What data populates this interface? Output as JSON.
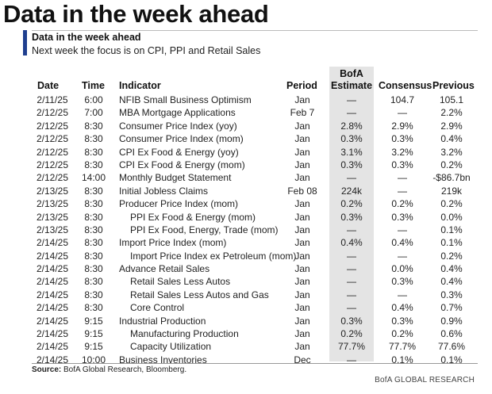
{
  "headline": "Data in the week ahead",
  "panel": {
    "title": "Data in the week ahead",
    "subtitle": "Next week the focus is on CPI, PPI and Retail Sales"
  },
  "columns": {
    "date": "Date",
    "time": "Time",
    "indicator": "Indicator",
    "period": "Period",
    "bofa_top": "BofA",
    "bofa_bottom": "Estimate",
    "consensus": "Consensus",
    "previous": "Previous"
  },
  "rows": [
    {
      "date": "2/11/25",
      "time": "6:00",
      "indicator": "NFIB Small Business Optimism",
      "indent": 0,
      "period": "Jan",
      "bofa": "—",
      "consensus": "104.7",
      "previous": "105.1"
    },
    {
      "date": "2/12/25",
      "time": "7:00",
      "indicator": "MBA Mortgage Applications",
      "indent": 0,
      "period": "Feb 7",
      "bofa": "—",
      "consensus": "—",
      "previous": "2.2%"
    },
    {
      "date": "2/12/25",
      "time": "8:30",
      "indicator": "Consumer Price Index (yoy)",
      "indent": 0,
      "period": "Jan",
      "bofa": "2.8%",
      "consensus": "2.9%",
      "previous": "2.9%"
    },
    {
      "date": "2/12/25",
      "time": "8:30",
      "indicator": "Consumer Price Index (mom)",
      "indent": 0,
      "period": "Jan",
      "bofa": "0.3%",
      "consensus": "0.3%",
      "previous": "0.4%"
    },
    {
      "date": "2/12/25",
      "time": "8:30",
      "indicator": "CPI Ex Food & Energy (yoy)",
      "indent": 0,
      "period": "Jan",
      "bofa": "3.1%",
      "consensus": "3.2%",
      "previous": "3.2%"
    },
    {
      "date": "2/12/25",
      "time": "8:30",
      "indicator": "CPI Ex Food & Energy (mom)",
      "indent": 0,
      "period": "Jan",
      "bofa": "0.3%",
      "consensus": "0.3%",
      "previous": "0.2%"
    },
    {
      "date": "2/12/25",
      "time": "14:00",
      "indicator": "Monthly Budget Statement",
      "indent": 0,
      "period": "Jan",
      "bofa": "—",
      "consensus": "—",
      "previous": "-$86.7bn"
    },
    {
      "date": "2/13/25",
      "time": "8:30",
      "indicator": "Initial Jobless Claims",
      "indent": 0,
      "period": "Feb 08",
      "bofa": "224k",
      "consensus": "—",
      "previous": "219k"
    },
    {
      "date": "2/13/25",
      "time": "8:30",
      "indicator": "Producer Price Index (mom)",
      "indent": 0,
      "period": "Jan",
      "bofa": "0.2%",
      "consensus": "0.2%",
      "previous": "0.2%"
    },
    {
      "date": "2/13/25",
      "time": "8:30",
      "indicator": "PPI Ex Food & Energy (mom)",
      "indent": 1,
      "period": "Jan",
      "bofa": "0.3%",
      "consensus": "0.3%",
      "previous": "0.0%"
    },
    {
      "date": "2/13/25",
      "time": "8:30",
      "indicator": "PPI Ex Food, Energy, Trade (mom)",
      "indent": 1,
      "period": "Jan",
      "bofa": "—",
      "consensus": "—",
      "previous": "0.1%"
    },
    {
      "date": "2/14/25",
      "time": "8:30",
      "indicator": "Import Price Index (mom)",
      "indent": 0,
      "period": "Jan",
      "bofa": "0.4%",
      "consensus": "0.4%",
      "previous": "0.1%"
    },
    {
      "date": "2/14/25",
      "time": "8:30",
      "indicator": "Import Price Index ex Petroleum (mom)",
      "indent": 1,
      "period": "Jan",
      "bofa": "—",
      "consensus": "—",
      "previous": "0.2%"
    },
    {
      "date": "2/14/25",
      "time": "8:30",
      "indicator": "Advance Retail Sales",
      "indent": 0,
      "period": "Jan",
      "bofa": "—",
      "consensus": "0.0%",
      "previous": "0.4%"
    },
    {
      "date": "2/14/25",
      "time": "8:30",
      "indicator": "Retail Sales Less Autos",
      "indent": 1,
      "period": "Jan",
      "bofa": "—",
      "consensus": "0.3%",
      "previous": "0.4%"
    },
    {
      "date": "2/14/25",
      "time": "8:30",
      "indicator": "Retail Sales Less Autos and Gas",
      "indent": 1,
      "period": "Jan",
      "bofa": "—",
      "consensus": "—",
      "previous": "0.3%"
    },
    {
      "date": "2/14/25",
      "time": "8:30",
      "indicator": "Core Control",
      "indent": 1,
      "period": "Jan",
      "bofa": "—",
      "consensus": "0.4%",
      "previous": "0.7%"
    },
    {
      "date": "2/14/25",
      "time": "9:15",
      "indicator": "Industrial Production",
      "indent": 0,
      "period": "Jan",
      "bofa": "0.3%",
      "consensus": "0.3%",
      "previous": "0.9%"
    },
    {
      "date": "2/14/25",
      "time": "9:15",
      "indicator": "Manufacturing Production",
      "indent": 1,
      "period": "Jan",
      "bofa": "0.2%",
      "consensus": "0.2%",
      "previous": "0.6%"
    },
    {
      "date": "2/14/25",
      "time": "9:15",
      "indicator": "Capacity Utilization",
      "indent": 1,
      "period": "Jan",
      "bofa": "77.7%",
      "consensus": "77.7%",
      "previous": "77.6%"
    },
    {
      "date": "2/14/25",
      "time": "10:00",
      "indicator": "Business Inventories",
      "indent": 0,
      "period": "Dec",
      "bofa": "—",
      "consensus": "0.1%",
      "previous": "0.1%"
    }
  ],
  "footer": {
    "source_label": "Source:",
    "source_text": " BofA Global Research, Bloomberg.",
    "brand": "BofA GLOBAL RESEARCH"
  },
  "colors": {
    "accent": "#1f3f8f",
    "shade": "#e4e4e4"
  }
}
